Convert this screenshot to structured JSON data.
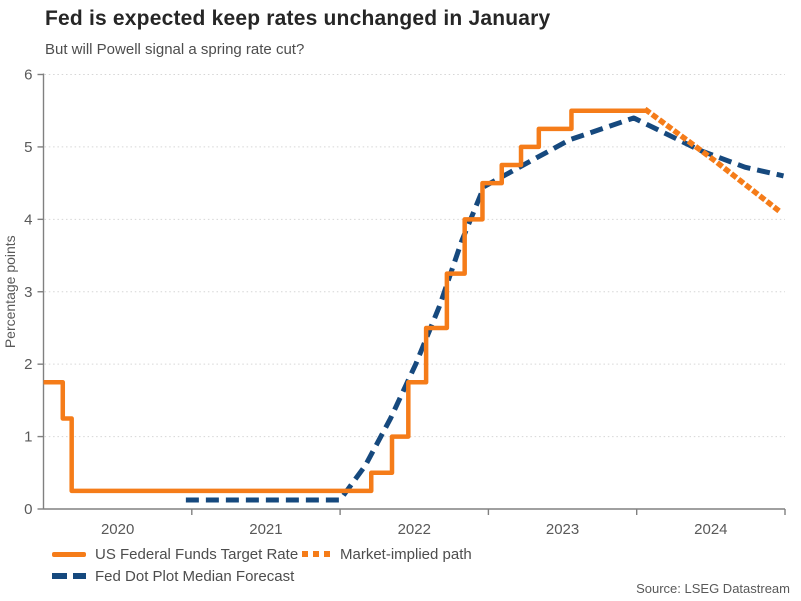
{
  "header": {
    "title": "Fed is expected keep rates unchanged in January",
    "subtitle": "But will Powell signal a spring rate cut?"
  },
  "legend": {
    "items": [
      {
        "label": "US Federal Funds Target Rate",
        "style": "solid",
        "color": "#f57c19"
      },
      {
        "label": "Fed Dot Plot Median Forecast",
        "style": "dashed",
        "color": "#16497e"
      },
      {
        "label": "Market-implied path",
        "style": "dotted",
        "color": "#f57c19"
      }
    ]
  },
  "source": "Source: LSEG Datastream",
  "colors": {
    "orange": "#f57c19",
    "navy": "#16497e",
    "axis": "#808080",
    "grid": "#d6d6d6",
    "tick_label": "#595959"
  },
  "chart_data": {
    "type": "line",
    "title": "Fed is expected keep rates unchanged in January",
    "subtitle": "But will Powell signal a spring rate cut?",
    "xlabel": "",
    "ylabel": "Percentage points",
    "ylim": [
      0,
      6
    ],
    "yticks": [
      0,
      1,
      2,
      3,
      4,
      5,
      6
    ],
    "xlim": [
      2020.0,
      2025.0
    ],
    "xtick_marks": [
      2021,
      2022,
      2023,
      2024,
      2025
    ],
    "xtick_labels": [
      {
        "label": "2020",
        "x": 2020.5
      },
      {
        "label": "2021",
        "x": 2021.5
      },
      {
        "label": "2022",
        "x": 2022.5
      },
      {
        "label": "2023",
        "x": 2023.5
      },
      {
        "label": "2024",
        "x": 2024.5
      }
    ],
    "grid": "horizontal-dotted",
    "legend_position": "bottom",
    "series": [
      {
        "name": "Fed Dot Plot Median Forecast",
        "type": "line",
        "dash": "dashed",
        "color": "#16497e",
        "points": [
          [
            2020.96,
            0.125
          ],
          [
            2022.0,
            0.125
          ],
          [
            2022.17,
            0.6
          ],
          [
            2022.34,
            1.25
          ],
          [
            2022.51,
            2.0
          ],
          [
            2022.67,
            2.8
          ],
          [
            2022.82,
            3.7
          ],
          [
            2022.97,
            4.45
          ],
          [
            2023.28,
            4.8
          ],
          [
            2023.55,
            5.1
          ],
          [
            2023.98,
            5.4
          ],
          [
            2024.43,
            4.95
          ],
          [
            2024.73,
            4.72
          ],
          [
            2024.99,
            4.6
          ]
        ]
      },
      {
        "name": "US Federal Funds Target Rate",
        "type": "step",
        "dash": "solid",
        "color": "#f57c19",
        "points": [
          [
            2020.0,
            1.75
          ],
          [
            2020.13,
            1.25
          ],
          [
            2020.19,
            0.25
          ],
          [
            2022.21,
            0.5
          ],
          [
            2022.35,
            1.0
          ],
          [
            2022.46,
            1.75
          ],
          [
            2022.58,
            2.5
          ],
          [
            2022.72,
            3.25
          ],
          [
            2022.84,
            4.0
          ],
          [
            2022.96,
            4.5
          ],
          [
            2023.09,
            4.75
          ],
          [
            2023.22,
            5.0
          ],
          [
            2023.34,
            5.25
          ],
          [
            2023.56,
            5.5
          ],
          [
            2024.07,
            5.5
          ]
        ]
      },
      {
        "name": "Market-implied path",
        "type": "line",
        "dash": "dotted",
        "color": "#f57c19",
        "points": [
          [
            2024.07,
            5.5
          ],
          [
            2024.52,
            4.82
          ],
          [
            2024.97,
            4.1
          ]
        ]
      }
    ]
  }
}
